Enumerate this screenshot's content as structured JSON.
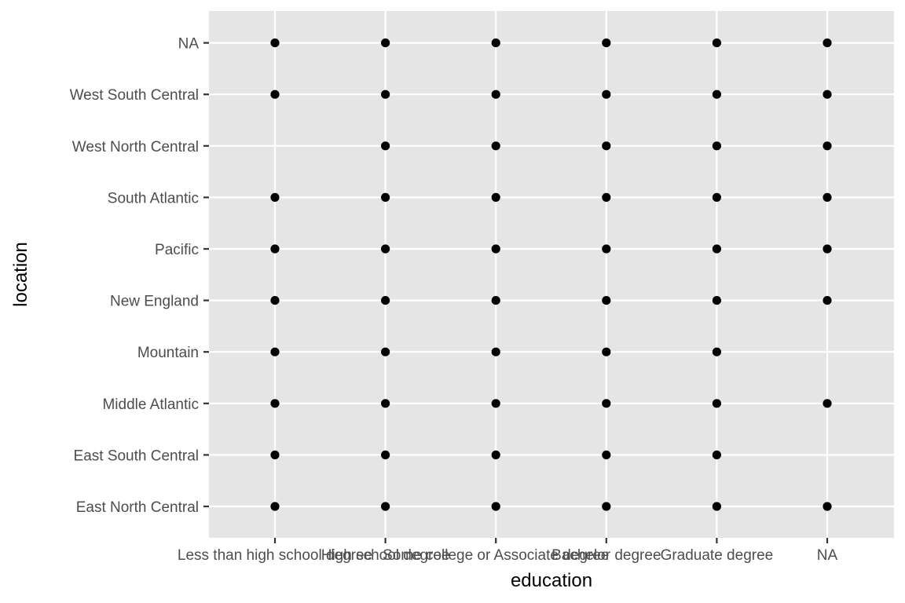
{
  "chart_data": {
    "type": "scatter",
    "xlabel": "education",
    "ylabel": "location",
    "x_categories": [
      "Less than high school degree",
      "High school degree",
      "Some college or Associate degree",
      "Bachelor degree",
      "Graduate degree",
      "NA"
    ],
    "y_categories": [
      "East North Central",
      "East South Central",
      "Middle Atlantic",
      "Mountain",
      "New England",
      "Pacific",
      "South Atlantic",
      "West North Central",
      "West South Central",
      "NA"
    ],
    "points": [
      {
        "x": "Less than high school degree",
        "y": "NA"
      },
      {
        "x": "High school degree",
        "y": "NA"
      },
      {
        "x": "Some college or Associate degree",
        "y": "NA"
      },
      {
        "x": "Bachelor degree",
        "y": "NA"
      },
      {
        "x": "Graduate degree",
        "y": "NA"
      },
      {
        "x": "NA",
        "y": "NA"
      },
      {
        "x": "Less than high school degree",
        "y": "West South Central"
      },
      {
        "x": "High school degree",
        "y": "West South Central"
      },
      {
        "x": "Some college or Associate degree",
        "y": "West South Central"
      },
      {
        "x": "Bachelor degree",
        "y": "West South Central"
      },
      {
        "x": "Graduate degree",
        "y": "West South Central"
      },
      {
        "x": "NA",
        "y": "West South Central"
      },
      {
        "x": "High school degree",
        "y": "West North Central"
      },
      {
        "x": "Some college or Associate degree",
        "y": "West North Central"
      },
      {
        "x": "Bachelor degree",
        "y": "West North Central"
      },
      {
        "x": "Graduate degree",
        "y": "West North Central"
      },
      {
        "x": "NA",
        "y": "West North Central"
      },
      {
        "x": "Less than high school degree",
        "y": "South Atlantic"
      },
      {
        "x": "High school degree",
        "y": "South Atlantic"
      },
      {
        "x": "Some college or Associate degree",
        "y": "South Atlantic"
      },
      {
        "x": "Bachelor degree",
        "y": "South Atlantic"
      },
      {
        "x": "Graduate degree",
        "y": "South Atlantic"
      },
      {
        "x": "NA",
        "y": "South Atlantic"
      },
      {
        "x": "Less than high school degree",
        "y": "Pacific"
      },
      {
        "x": "High school degree",
        "y": "Pacific"
      },
      {
        "x": "Some college or Associate degree",
        "y": "Pacific"
      },
      {
        "x": "Bachelor degree",
        "y": "Pacific"
      },
      {
        "x": "Graduate degree",
        "y": "Pacific"
      },
      {
        "x": "NA",
        "y": "Pacific"
      },
      {
        "x": "Less than high school degree",
        "y": "New England"
      },
      {
        "x": "High school degree",
        "y": "New England"
      },
      {
        "x": "Some college or Associate degree",
        "y": "New England"
      },
      {
        "x": "Bachelor degree",
        "y": "New England"
      },
      {
        "x": "Graduate degree",
        "y": "New England"
      },
      {
        "x": "NA",
        "y": "New England"
      },
      {
        "x": "Less than high school degree",
        "y": "Mountain"
      },
      {
        "x": "High school degree",
        "y": "Mountain"
      },
      {
        "x": "Some college or Associate degree",
        "y": "Mountain"
      },
      {
        "x": "Bachelor degree",
        "y": "Mountain"
      },
      {
        "x": "Graduate degree",
        "y": "Mountain"
      },
      {
        "x": "Less than high school degree",
        "y": "Middle Atlantic"
      },
      {
        "x": "High school degree",
        "y": "Middle Atlantic"
      },
      {
        "x": "Some college or Associate degree",
        "y": "Middle Atlantic"
      },
      {
        "x": "Bachelor degree",
        "y": "Middle Atlantic"
      },
      {
        "x": "Graduate degree",
        "y": "Middle Atlantic"
      },
      {
        "x": "NA",
        "y": "Middle Atlantic"
      },
      {
        "x": "Less than high school degree",
        "y": "East South Central"
      },
      {
        "x": "High school degree",
        "y": "East South Central"
      },
      {
        "x": "Some college or Associate degree",
        "y": "East South Central"
      },
      {
        "x": "Bachelor degree",
        "y": "East South Central"
      },
      {
        "x": "Graduate degree",
        "y": "East South Central"
      },
      {
        "x": "Less than high school degree",
        "y": "East North Central"
      },
      {
        "x": "High school degree",
        "y": "East North Central"
      },
      {
        "x": "Some college or Associate degree",
        "y": "East North Central"
      },
      {
        "x": "Bachelor degree",
        "y": "East North Central"
      },
      {
        "x": "Graduate degree",
        "y": "East North Central"
      },
      {
        "x": "NA",
        "y": "East North Central"
      }
    ],
    "grid": true,
    "legend": "none",
    "colors": {
      "panel_background": "#e5e5e5",
      "grid_line": "#ffffff",
      "point": "#000000",
      "tick_text": "#4d4d4d",
      "axis_title": "#000000"
    }
  }
}
